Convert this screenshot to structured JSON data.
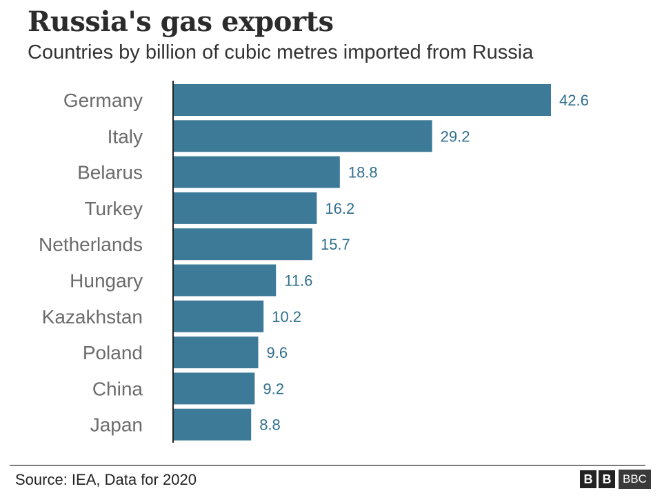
{
  "chart_data": {
    "type": "bar",
    "orientation": "horizontal",
    "title": "Russia's gas exports",
    "subtitle": "Countries by billion of cubic metres imported from Russia",
    "categories": [
      "Germany",
      "Italy",
      "Belarus",
      "Turkey",
      "Netherlands",
      "Hungary",
      "Kazakhstan",
      "Poland",
      "China",
      "Japan"
    ],
    "values": [
      42.6,
      29.2,
      18.8,
      16.2,
      15.7,
      11.6,
      10.2,
      9.6,
      9.2,
      8.8
    ],
    "value_labels": [
      "42.6",
      "29.2",
      "18.8",
      "16.2",
      "15.7",
      "11.6",
      "10.2",
      "9.6",
      "9.2",
      "8.8"
    ],
    "xlim": [
      0,
      42.6
    ],
    "grid": false,
    "legend": "none",
    "bar_color": "#3c7a98",
    "value_label_color": "#2f6f8c",
    "category_label_color": "#6b6b6b"
  },
  "footer": {
    "source": "Source: IEA, Data for 2020",
    "logo_letters": [
      "B",
      "B"
    ],
    "logo_wide": "BBC"
  }
}
